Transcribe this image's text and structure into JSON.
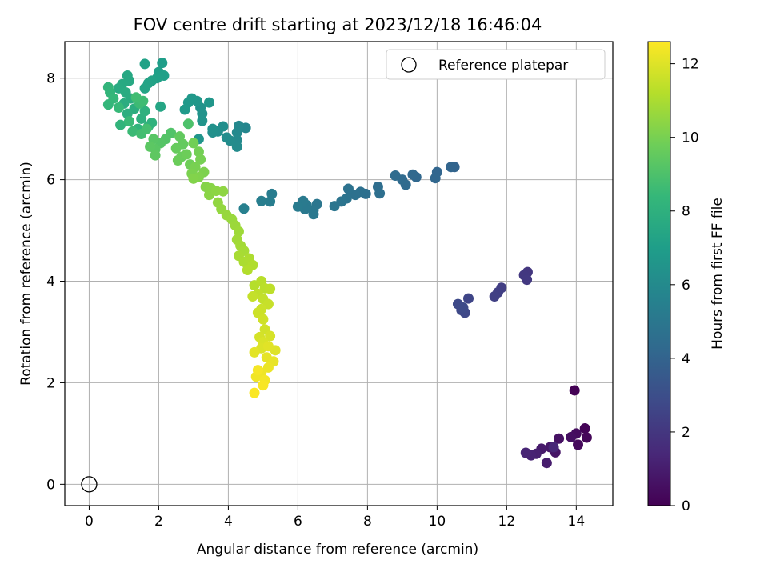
{
  "chart_data": {
    "type": "scatter",
    "title": "FOV centre drift starting at 2023/12/18 16:46:04",
    "xlabel": "Angular distance from reference (arcmin)",
    "ylabel": "Rotation from reference (arcmin)",
    "xlim": [
      -0.7,
      15.05
    ],
    "ylim": [
      -0.42,
      8.72
    ],
    "xticks": [
      0,
      2,
      4,
      6,
      8,
      10,
      12,
      14
    ],
    "yticks": [
      0,
      2,
      4,
      6,
      8
    ],
    "grid": true,
    "legend": {
      "placement": "top-right",
      "entries": [
        "Reference platepar"
      ]
    },
    "reference": {
      "x": 0,
      "y": 0,
      "name": "Reference platepar"
    },
    "colorbar": {
      "label": "Hours from first FF file",
      "min": 0,
      "max": 12.6,
      "ticks": [
        0,
        2,
        4,
        6,
        8,
        10,
        12
      ],
      "colormap": "viridis"
    },
    "points": [
      {
        "x": 13.95,
        "y": 1.85,
        "h": 0.05
      },
      {
        "x": 14.25,
        "y": 1.1,
        "h": 0.1
      },
      {
        "x": 14.3,
        "y": 0.92,
        "h": 0.2
      },
      {
        "x": 14.05,
        "y": 0.78,
        "h": 0.3
      },
      {
        "x": 14.0,
        "y": 1.0,
        "h": 0.4
      },
      {
        "x": 13.85,
        "y": 0.93,
        "h": 0.5
      },
      {
        "x": 13.5,
        "y": 0.9,
        "h": 0.6
      },
      {
        "x": 13.4,
        "y": 0.63,
        "h": 0.7
      },
      {
        "x": 13.25,
        "y": 0.73,
        "h": 0.8
      },
      {
        "x": 13.0,
        "y": 0.7,
        "h": 0.9
      },
      {
        "x": 13.15,
        "y": 0.42,
        "h": 1.0
      },
      {
        "x": 12.85,
        "y": 0.6,
        "h": 1.1
      },
      {
        "x": 12.7,
        "y": 0.57,
        "h": 1.2
      },
      {
        "x": 12.55,
        "y": 0.62,
        "h": 1.3
      },
      {
        "x": 13.35,
        "y": 0.73,
        "h": 1.35
      },
      {
        "x": 12.6,
        "y": 4.18,
        "h": 2.0
      },
      {
        "x": 12.5,
        "y": 4.12,
        "h": 2.05
      },
      {
        "x": 12.58,
        "y": 4.03,
        "h": 2.1
      },
      {
        "x": 11.85,
        "y": 3.87,
        "h": 2.3
      },
      {
        "x": 11.75,
        "y": 3.78,
        "h": 2.35
      },
      {
        "x": 11.65,
        "y": 3.7,
        "h": 2.4
      },
      {
        "x": 10.9,
        "y": 3.66,
        "h": 2.6
      },
      {
        "x": 10.8,
        "y": 3.38,
        "h": 2.7
      },
      {
        "x": 10.7,
        "y": 3.43,
        "h": 2.75
      },
      {
        "x": 10.6,
        "y": 3.55,
        "h": 2.8
      },
      {
        "x": 10.75,
        "y": 3.48,
        "h": 2.85
      },
      {
        "x": 10.5,
        "y": 6.25,
        "h": 4.0
      },
      {
        "x": 10.4,
        "y": 6.25,
        "h": 4.05
      },
      {
        "x": 10.0,
        "y": 6.15,
        "h": 4.1
      },
      {
        "x": 9.95,
        "y": 6.03,
        "h": 4.15
      },
      {
        "x": 9.4,
        "y": 6.05,
        "h": 4.2
      },
      {
        "x": 9.3,
        "y": 6.1,
        "h": 4.25
      },
      {
        "x": 9.1,
        "y": 5.9,
        "h": 4.3
      },
      {
        "x": 9.0,
        "y": 6.0,
        "h": 4.35
      },
      {
        "x": 8.8,
        "y": 6.08,
        "h": 4.4
      },
      {
        "x": 8.3,
        "y": 5.86,
        "h": 4.5
      },
      {
        "x": 8.35,
        "y": 5.73,
        "h": 4.55
      },
      {
        "x": 7.95,
        "y": 5.72,
        "h": 4.6
      },
      {
        "x": 7.8,
        "y": 5.76,
        "h": 4.65
      },
      {
        "x": 7.65,
        "y": 5.7,
        "h": 4.7
      },
      {
        "x": 7.45,
        "y": 5.82,
        "h": 4.75
      },
      {
        "x": 7.4,
        "y": 5.63,
        "h": 4.8
      },
      {
        "x": 7.25,
        "y": 5.57,
        "h": 4.85
      },
      {
        "x": 7.05,
        "y": 5.48,
        "h": 4.9
      },
      {
        "x": 6.55,
        "y": 5.52,
        "h": 4.95
      },
      {
        "x": 6.45,
        "y": 5.4,
        "h": 5.0
      },
      {
        "x": 6.45,
        "y": 5.32,
        "h": 5.05
      },
      {
        "x": 6.25,
        "y": 5.5,
        "h": 5.1
      },
      {
        "x": 6.2,
        "y": 5.42,
        "h": 5.12
      },
      {
        "x": 6.15,
        "y": 5.58,
        "h": 5.15
      },
      {
        "x": 6.0,
        "y": 5.47,
        "h": 5.2
      },
      {
        "x": 5.25,
        "y": 5.72,
        "h": 5.3
      },
      {
        "x": 5.2,
        "y": 5.57,
        "h": 5.35
      },
      {
        "x": 4.95,
        "y": 5.58,
        "h": 5.4
      },
      {
        "x": 4.45,
        "y": 5.43,
        "h": 5.5
      },
      {
        "x": 4.5,
        "y": 7.02,
        "h": 5.8
      },
      {
        "x": 4.3,
        "y": 7.06,
        "h": 5.9
      },
      {
        "x": 4.25,
        "y": 6.93,
        "h": 5.95
      },
      {
        "x": 4.25,
        "y": 6.78,
        "h": 6.0
      },
      {
        "x": 4.25,
        "y": 6.65,
        "h": 6.05
      },
      {
        "x": 4.05,
        "y": 6.77,
        "h": 6.1
      },
      {
        "x": 3.95,
        "y": 6.83,
        "h": 6.15
      },
      {
        "x": 3.85,
        "y": 7.05,
        "h": 6.2
      },
      {
        "x": 3.7,
        "y": 6.95,
        "h": 6.25
      },
      {
        "x": 3.55,
        "y": 6.93,
        "h": 6.3
      },
      {
        "x": 3.55,
        "y": 7.0,
        "h": 6.35
      },
      {
        "x": 3.2,
        "y": 7.42,
        "h": 6.4
      },
      {
        "x": 3.25,
        "y": 7.3,
        "h": 6.45
      },
      {
        "x": 3.25,
        "y": 7.16,
        "h": 6.5
      },
      {
        "x": 3.15,
        "y": 6.8,
        "h": 6.55
      },
      {
        "x": 3.45,
        "y": 7.52,
        "h": 6.6
      },
      {
        "x": 3.1,
        "y": 7.55,
        "h": 6.65
      },
      {
        "x": 2.95,
        "y": 7.6,
        "h": 6.7
      },
      {
        "x": 2.85,
        "y": 7.52,
        "h": 6.75
      },
      {
        "x": 2.75,
        "y": 7.38,
        "h": 6.8
      },
      {
        "x": 2.1,
        "y": 8.3,
        "h": 7.0
      },
      {
        "x": 2.0,
        "y": 8.12,
        "h": 7.05
      },
      {
        "x": 2.15,
        "y": 8.05,
        "h": 7.1
      },
      {
        "x": 1.95,
        "y": 8.0,
        "h": 7.15
      },
      {
        "x": 1.6,
        "y": 8.28,
        "h": 7.2
      },
      {
        "x": 1.8,
        "y": 7.95,
        "h": 7.25
      },
      {
        "x": 1.7,
        "y": 7.9,
        "h": 7.3
      },
      {
        "x": 1.6,
        "y": 7.8,
        "h": 7.35
      },
      {
        "x": 2.05,
        "y": 7.44,
        "h": 7.4
      },
      {
        "x": 1.1,
        "y": 8.05,
        "h": 7.5
      },
      {
        "x": 1.15,
        "y": 7.95,
        "h": 7.55
      },
      {
        "x": 0.95,
        "y": 7.88,
        "h": 7.6
      },
      {
        "x": 0.85,
        "y": 7.8,
        "h": 7.65
      },
      {
        "x": 1.05,
        "y": 7.72,
        "h": 7.7
      },
      {
        "x": 1.2,
        "y": 7.6,
        "h": 7.75
      },
      {
        "x": 1.0,
        "y": 7.5,
        "h": 7.8
      },
      {
        "x": 1.3,
        "y": 7.4,
        "h": 7.85
      },
      {
        "x": 1.1,
        "y": 7.3,
        "h": 7.9
      },
      {
        "x": 1.5,
        "y": 7.2,
        "h": 7.95
      },
      {
        "x": 1.6,
        "y": 7.35,
        "h": 8.0
      },
      {
        "x": 1.8,
        "y": 7.12,
        "h": 8.05
      },
      {
        "x": 1.7,
        "y": 7.05,
        "h": 8.1
      },
      {
        "x": 1.4,
        "y": 7.0,
        "h": 8.15
      },
      {
        "x": 0.9,
        "y": 7.08,
        "h": 8.2
      },
      {
        "x": 0.55,
        "y": 7.82,
        "h": 8.25
      },
      {
        "x": 0.6,
        "y": 7.72,
        "h": 8.3
      },
      {
        "x": 0.55,
        "y": 7.48,
        "h": 8.35
      },
      {
        "x": 0.7,
        "y": 7.6,
        "h": 8.4
      },
      {
        "x": 0.85,
        "y": 7.42,
        "h": 8.45
      },
      {
        "x": 1.15,
        "y": 7.15,
        "h": 8.5
      },
      {
        "x": 1.25,
        "y": 6.95,
        "h": 8.55
      },
      {
        "x": 1.45,
        "y": 7.5,
        "h": 8.6
      },
      {
        "x": 1.55,
        "y": 7.55,
        "h": 8.65
      },
      {
        "x": 1.35,
        "y": 7.62,
        "h": 8.7
      },
      {
        "x": 1.5,
        "y": 6.9,
        "h": 8.75
      },
      {
        "x": 1.65,
        "y": 7.0,
        "h": 8.8
      },
      {
        "x": 2.85,
        "y": 7.1,
        "h": 9.0
      },
      {
        "x": 2.35,
        "y": 6.92,
        "h": 9.1
      },
      {
        "x": 2.2,
        "y": 6.8,
        "h": 9.15
      },
      {
        "x": 2.05,
        "y": 6.72,
        "h": 9.2
      },
      {
        "x": 1.85,
        "y": 6.8,
        "h": 9.25
      },
      {
        "x": 1.9,
        "y": 6.6,
        "h": 9.3
      },
      {
        "x": 1.75,
        "y": 6.65,
        "h": 9.35
      },
      {
        "x": 1.9,
        "y": 6.48,
        "h": 9.4
      },
      {
        "x": 2.6,
        "y": 6.85,
        "h": 9.5
      },
      {
        "x": 2.7,
        "y": 6.7,
        "h": 9.55
      },
      {
        "x": 2.5,
        "y": 6.62,
        "h": 9.6
      },
      {
        "x": 2.65,
        "y": 6.45,
        "h": 9.65
      },
      {
        "x": 2.55,
        "y": 6.38,
        "h": 9.7
      },
      {
        "x": 2.8,
        "y": 6.5,
        "h": 9.75
      },
      {
        "x": 2.9,
        "y": 6.3,
        "h": 9.8
      },
      {
        "x": 3.0,
        "y": 6.72,
        "h": 9.85
      },
      {
        "x": 3.15,
        "y": 6.55,
        "h": 9.9
      },
      {
        "x": 3.2,
        "y": 6.4,
        "h": 9.95
      },
      {
        "x": 3.05,
        "y": 6.25,
        "h": 10.0
      },
      {
        "x": 2.95,
        "y": 6.12,
        "h": 10.05
      },
      {
        "x": 3.3,
        "y": 6.15,
        "h": 10.1
      },
      {
        "x": 3.15,
        "y": 6.05,
        "h": 10.15
      },
      {
        "x": 3.0,
        "y": 6.02,
        "h": 10.2
      },
      {
        "x": 3.35,
        "y": 5.86,
        "h": 10.25
      },
      {
        "x": 3.5,
        "y": 5.83,
        "h": 10.3
      },
      {
        "x": 3.45,
        "y": 5.7,
        "h": 10.35
      },
      {
        "x": 3.65,
        "y": 5.78,
        "h": 10.4
      },
      {
        "x": 3.85,
        "y": 5.77,
        "h": 10.45
      },
      {
        "x": 3.7,
        "y": 5.55,
        "h": 10.5
      },
      {
        "x": 3.8,
        "y": 5.42,
        "h": 10.55
      },
      {
        "x": 3.95,
        "y": 5.3,
        "h": 10.6
      },
      {
        "x": 4.1,
        "y": 5.22,
        "h": 10.65
      },
      {
        "x": 4.2,
        "y": 5.1,
        "h": 10.7
      },
      {
        "x": 4.3,
        "y": 4.98,
        "h": 10.75
      },
      {
        "x": 4.25,
        "y": 4.82,
        "h": 10.8
      },
      {
        "x": 4.35,
        "y": 4.7,
        "h": 10.85
      },
      {
        "x": 4.45,
        "y": 4.6,
        "h": 10.9
      },
      {
        "x": 4.3,
        "y": 4.5,
        "h": 10.95
      },
      {
        "x": 4.45,
        "y": 4.38,
        "h": 11.0
      },
      {
        "x": 4.6,
        "y": 4.45,
        "h": 11.05
      },
      {
        "x": 4.7,
        "y": 4.32,
        "h": 11.1
      },
      {
        "x": 4.55,
        "y": 4.22,
        "h": 11.15
      },
      {
        "x": 4.75,
        "y": 3.92,
        "h": 11.2
      },
      {
        "x": 4.95,
        "y": 4.0,
        "h": 11.25
      },
      {
        "x": 5.05,
        "y": 3.86,
        "h": 11.3
      },
      {
        "x": 5.2,
        "y": 3.85,
        "h": 11.35
      },
      {
        "x": 4.85,
        "y": 3.75,
        "h": 11.4
      },
      {
        "x": 5.0,
        "y": 3.65,
        "h": 11.45
      },
      {
        "x": 4.7,
        "y": 3.7,
        "h": 11.5
      },
      {
        "x": 5.15,
        "y": 3.55,
        "h": 11.55
      },
      {
        "x": 4.95,
        "y": 3.45,
        "h": 11.6
      },
      {
        "x": 4.85,
        "y": 3.38,
        "h": 11.65
      },
      {
        "x": 5.0,
        "y": 3.25,
        "h": 11.7
      },
      {
        "x": 5.05,
        "y": 3.05,
        "h": 11.75
      },
      {
        "x": 4.9,
        "y": 2.9,
        "h": 11.8
      },
      {
        "x": 5.2,
        "y": 2.92,
        "h": 11.85
      },
      {
        "x": 5.0,
        "y": 2.8,
        "h": 11.9
      },
      {
        "x": 4.95,
        "y": 2.68,
        "h": 11.95
      },
      {
        "x": 5.35,
        "y": 2.64,
        "h": 12.0
      },
      {
        "x": 5.15,
        "y": 2.72,
        "h": 12.05
      },
      {
        "x": 4.75,
        "y": 2.6,
        "h": 12.1
      },
      {
        "x": 5.1,
        "y": 2.5,
        "h": 12.15
      },
      {
        "x": 5.3,
        "y": 2.42,
        "h": 12.2
      },
      {
        "x": 5.15,
        "y": 2.3,
        "h": 12.25
      },
      {
        "x": 4.95,
        "y": 2.2,
        "h": 12.3
      },
      {
        "x": 4.8,
        "y": 2.12,
        "h": 12.35
      },
      {
        "x": 5.05,
        "y": 2.05,
        "h": 12.4
      },
      {
        "x": 4.85,
        "y": 2.25,
        "h": 12.45
      },
      {
        "x": 5.0,
        "y": 1.95,
        "h": 12.5
      },
      {
        "x": 4.75,
        "y": 1.8,
        "h": 12.55
      }
    ]
  }
}
